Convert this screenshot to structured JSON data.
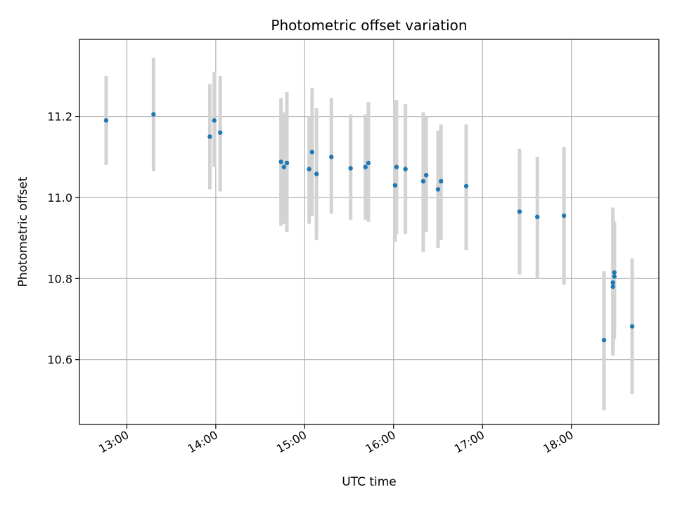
{
  "chart_data": {
    "type": "scatter",
    "title": "Photometric offset variation",
    "xlabel": "UTC time",
    "ylabel": "Photometric offset",
    "x_ticks": [
      "13:00",
      "14:00",
      "15:00",
      "16:00",
      "17:00",
      "18:00"
    ],
    "y_ticks": [
      "10.6",
      "10.8",
      "11.0",
      "11.2"
    ],
    "xlim": [
      "12:28",
      "18:59"
    ],
    "ylim": [
      10.44,
      11.39
    ],
    "grid": true,
    "legend": "none",
    "colors": {
      "point": "#1f77b4",
      "errorbar": "#d3d3d3",
      "grid": "#b0b0b0"
    },
    "points": [
      {
        "t": "12:46",
        "y": 11.19,
        "lo": 11.08,
        "hi": 11.3
      },
      {
        "t": "13:18",
        "y": 11.205,
        "lo": 11.065,
        "hi": 11.345
      },
      {
        "t": "13:56",
        "y": 11.15,
        "lo": 11.02,
        "hi": 11.28
      },
      {
        "t": "13:59",
        "y": 11.19,
        "lo": 11.075,
        "hi": 11.31
      },
      {
        "t": "14:03",
        "y": 11.16,
        "lo": 11.015,
        "hi": 11.3
      },
      {
        "t": "14:44",
        "y": 11.088,
        "lo": 10.93,
        "hi": 11.245
      },
      {
        "t": "14:46",
        "y": 11.075,
        "lo": 10.935,
        "hi": 11.21
      },
      {
        "t": "14:48",
        "y": 11.085,
        "lo": 10.915,
        "hi": 11.26
      },
      {
        "t": "15:03",
        "y": 11.07,
        "lo": 10.935,
        "hi": 11.2
      },
      {
        "t": "15:05",
        "y": 11.112,
        "lo": 10.955,
        "hi": 11.27
      },
      {
        "t": "15:08",
        "y": 11.058,
        "lo": 10.895,
        "hi": 11.22
      },
      {
        "t": "15:18",
        "y": 11.1,
        "lo": 10.96,
        "hi": 11.245
      },
      {
        "t": "15:31",
        "y": 11.072,
        "lo": 10.945,
        "hi": 11.205
      },
      {
        "t": "15:41",
        "y": 11.075,
        "lo": 10.945,
        "hi": 11.205
      },
      {
        "t": "15:43",
        "y": 11.085,
        "lo": 10.94,
        "hi": 11.235
      },
      {
        "t": "16:01",
        "y": 11.03,
        "lo": 10.89,
        "hi": 11.24
      },
      {
        "t": "16:02",
        "y": 11.075,
        "lo": 10.91,
        "hi": 11.24
      },
      {
        "t": "16:08",
        "y": 11.07,
        "lo": 10.91,
        "hi": 11.23
      },
      {
        "t": "16:20",
        "y": 11.04,
        "lo": 10.865,
        "hi": 11.21
      },
      {
        "t": "16:22",
        "y": 11.055,
        "lo": 10.915,
        "hi": 11.2
      },
      {
        "t": "16:30",
        "y": 11.02,
        "lo": 10.875,
        "hi": 11.165
      },
      {
        "t": "16:32",
        "y": 11.04,
        "lo": 10.895,
        "hi": 11.18
      },
      {
        "t": "16:49",
        "y": 11.028,
        "lo": 10.87,
        "hi": 11.18
      },
      {
        "t": "17:25",
        "y": 10.965,
        "lo": 10.81,
        "hi": 11.12
      },
      {
        "t": "17:37",
        "y": 10.952,
        "lo": 10.8,
        "hi": 11.1
      },
      {
        "t": "17:55",
        "y": 10.955,
        "lo": 10.785,
        "hi": 11.125
      },
      {
        "t": "18:22",
        "y": 10.648,
        "lo": 10.475,
        "hi": 10.818
      },
      {
        "t": "18:28",
        "y": 10.78,
        "lo": 10.61,
        "hi": 10.955
      },
      {
        "t": "18:28",
        "y": 10.79,
        "lo": 10.63,
        "hi": 10.975
      },
      {
        "t": "18:29",
        "y": 10.815,
        "lo": 10.65,
        "hi": 10.94
      },
      {
        "t": "18:29",
        "y": 10.805,
        "lo": 10.67,
        "hi": 10.94
      },
      {
        "t": "18:41",
        "y": 10.682,
        "lo": 10.515,
        "hi": 10.85
      }
    ]
  }
}
